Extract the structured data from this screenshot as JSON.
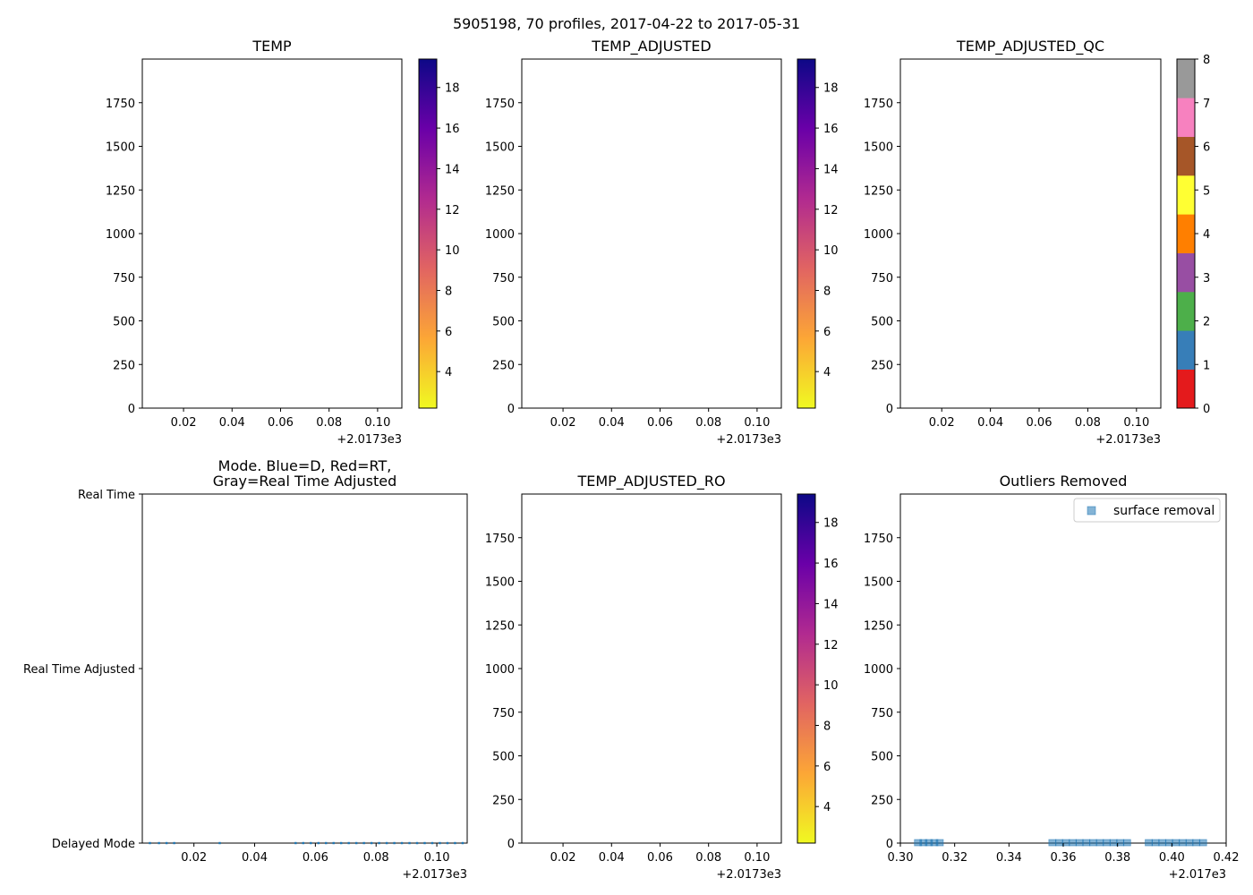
{
  "figure": {
    "suptitle": "5905198, 70 profiles, 2017-04-22 to 2017-05-31"
  },
  "colors": {
    "axis": "#000000",
    "dot": "#1f77b4",
    "outlier_fill": "#1f77b4",
    "legend_edge": "#cccccc",
    "plasma_r": [
      "#f0f921",
      "#fca636",
      "#e16462",
      "#b12a90",
      "#6a00a8",
      "#0d0887"
    ],
    "qc_classes": [
      "#e41a1c",
      "#377eb8",
      "#4daf4a",
      "#984ea3",
      "#ff7f00",
      "#ffff33",
      "#a65628",
      "#f781bf",
      "#999999"
    ]
  },
  "chart_data": [
    {
      "id": "temp",
      "type": "heatmap",
      "title": "TEMP",
      "x_ticks": [
        "0.02",
        "0.04",
        "0.06",
        "0.08",
        "0.10"
      ],
      "x_tick_values": [
        0.02,
        0.04,
        0.06,
        0.08,
        0.1
      ],
      "xlim": [
        0.003,
        0.11
      ],
      "x_offset_label": "+2.0173e3",
      "ylim": [
        2000,
        0
      ],
      "y_ticks": [
        "0",
        "250",
        "500",
        "750",
        "1000",
        "1250",
        "1500",
        "1750"
      ],
      "y_tick_values": [
        0,
        250,
        500,
        750,
        1000,
        1250,
        1500,
        1750
      ],
      "colorbar": {
        "cmap": "plasma_r",
        "range": [
          2.2,
          19.4
        ],
        "ticks": [
          "4",
          "6",
          "8",
          "10",
          "12",
          "14",
          "16",
          "18"
        ],
        "tick_values": [
          4,
          6,
          8,
          10,
          12,
          14,
          16,
          18
        ]
      }
    },
    {
      "id": "temp_adjusted",
      "type": "heatmap",
      "title": "TEMP_ADJUSTED",
      "x_ticks": [
        "0.02",
        "0.04",
        "0.06",
        "0.08",
        "0.10"
      ],
      "x_tick_values": [
        0.02,
        0.04,
        0.06,
        0.08,
        0.1
      ],
      "xlim": [
        0.003,
        0.11
      ],
      "x_offset_label": "+2.0173e3",
      "ylim": [
        2000,
        0
      ],
      "y_ticks": [
        "0",
        "250",
        "500",
        "750",
        "1000",
        "1250",
        "1500",
        "1750"
      ],
      "y_tick_values": [
        0,
        250,
        500,
        750,
        1000,
        1250,
        1500,
        1750
      ],
      "colorbar": {
        "cmap": "plasma_r",
        "range": [
          2.2,
          19.4
        ],
        "ticks": [
          "4",
          "6",
          "8",
          "10",
          "12",
          "14",
          "16",
          "18"
        ],
        "tick_values": [
          4,
          6,
          8,
          10,
          12,
          14,
          16,
          18
        ]
      }
    },
    {
      "id": "temp_adjusted_qc",
      "type": "heatmap",
      "title": "TEMP_ADJUSTED_QC",
      "x_ticks": [
        "0.02",
        "0.04",
        "0.06",
        "0.08",
        "0.10"
      ],
      "x_tick_values": [
        0.02,
        0.04,
        0.06,
        0.08,
        0.1
      ],
      "xlim": [
        0.003,
        0.11
      ],
      "x_offset_label": "+2.0173e3",
      "ylim": [
        2000,
        0
      ],
      "y_ticks": [
        "0",
        "250",
        "500",
        "750",
        "1000",
        "1250",
        "1500",
        "1750"
      ],
      "y_tick_values": [
        0,
        250,
        500,
        750,
        1000,
        1250,
        1500,
        1750
      ],
      "colorbar": {
        "cmap": "qc_classes",
        "range": [
          0,
          8
        ],
        "ticks": [
          "0",
          "1",
          "2",
          "3",
          "4",
          "5",
          "6",
          "7",
          "8"
        ],
        "tick_values": [
          0,
          1,
          2,
          3,
          4,
          5,
          6,
          7,
          8
        ]
      }
    },
    {
      "id": "mode",
      "type": "scatter",
      "title_lines": [
        "Mode. Blue=D, Red=RT,",
        "Gray=Real Time Adjusted"
      ],
      "x_ticks": [
        "0.02",
        "0.04",
        "0.06",
        "0.08",
        "0.10"
      ],
      "x_tick_values": [
        0.02,
        0.04,
        0.06,
        0.08,
        0.1
      ],
      "xlim": [
        0.003,
        0.11
      ],
      "x_offset_label": "+2.0173e3",
      "ylim": [
        0,
        2
      ],
      "y_ticks": [
        "Real Time",
        "Real Time Adjusted",
        "Delayed Mode"
      ],
      "y_tick_values": [
        0,
        1,
        2
      ],
      "points_x": [
        0.0055,
        0.0085,
        0.011,
        0.0135,
        0.0285,
        0.0535,
        0.056,
        0.0585,
        0.061,
        0.0635,
        0.066,
        0.0685,
        0.071,
        0.0735,
        0.076,
        0.0785,
        0.081,
        0.0835,
        0.086,
        0.0885,
        0.091,
        0.0935,
        0.096,
        0.0985,
        0.101,
        0.1035,
        0.106,
        0.1085
      ],
      "points_y": 2
    },
    {
      "id": "temp_adjusted_ro",
      "type": "heatmap",
      "title": "TEMP_ADJUSTED_RO",
      "x_ticks": [
        "0.02",
        "0.04",
        "0.06",
        "0.08",
        "0.10"
      ],
      "x_tick_values": [
        0.02,
        0.04,
        0.06,
        0.08,
        0.1
      ],
      "xlim": [
        0.003,
        0.11
      ],
      "x_offset_label": "+2.0173e3",
      "ylim": [
        2000,
        0
      ],
      "y_ticks": [
        "0",
        "250",
        "500",
        "750",
        "1000",
        "1250",
        "1500",
        "1750"
      ],
      "y_tick_values": [
        0,
        250,
        500,
        750,
        1000,
        1250,
        1500,
        1750
      ],
      "colorbar": {
        "cmap": "plasma_r",
        "range": [
          2.2,
          19.4
        ],
        "ticks": [
          "4",
          "6",
          "8",
          "10",
          "12",
          "14",
          "16",
          "18"
        ],
        "tick_values": [
          4,
          6,
          8,
          10,
          12,
          14,
          16,
          18
        ]
      }
    },
    {
      "id": "outliers",
      "type": "scatter",
      "title": "Outliers Removed",
      "x_ticks": [
        "0.30",
        "0.32",
        "0.34",
        "0.36",
        "0.38",
        "0.40",
        "0.42"
      ],
      "x_tick_values": [
        0.3,
        0.32,
        0.34,
        0.36,
        0.38,
        0.4,
        0.42
      ],
      "xlim": [
        0.3,
        0.42
      ],
      "x_offset_label": "+2.017e3",
      "ylim": [
        2000,
        0
      ],
      "y_ticks": [
        "0",
        "250",
        "500",
        "750",
        "1000",
        "1250",
        "1500",
        "1750"
      ],
      "y_tick_values": [
        0,
        250,
        500,
        750,
        1000,
        1250,
        1500,
        1750
      ],
      "legend": [
        "surface removal"
      ],
      "legend_position": "upper right",
      "points_x": [
        0.3065,
        0.3085,
        0.3105,
        0.3125,
        0.3145,
        0.356,
        0.3585,
        0.361,
        0.3635,
        0.366,
        0.3685,
        0.371,
        0.3735,
        0.376,
        0.3785,
        0.381,
        0.3835,
        0.3915,
        0.394,
        0.3965,
        0.399,
        0.4015,
        0.404,
        0.4065,
        0.409,
        0.4115
      ],
      "points_y": 5
    }
  ]
}
